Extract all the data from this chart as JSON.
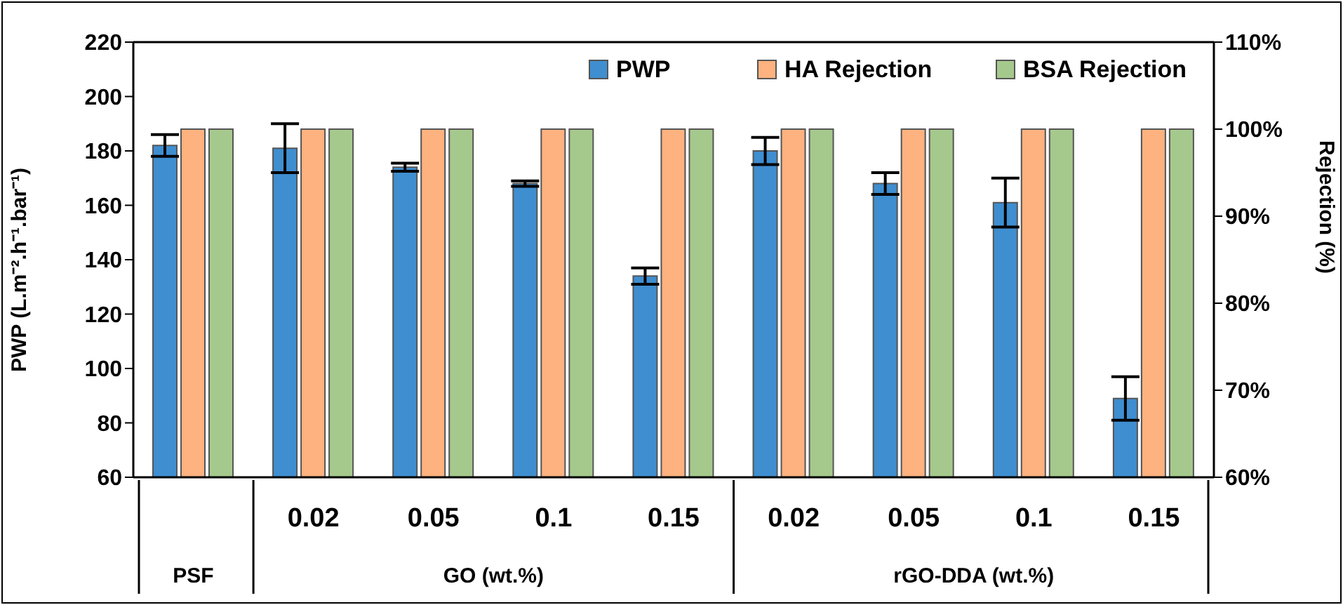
{
  "chart_data": {
    "type": "bar",
    "ylabel": "PWP (L.m⁻².h⁻¹.bar⁻¹)",
    "y2label": "Rejection (%)",
    "categories": [
      null,
      "0.02",
      "0.05",
      "0.1",
      "0.15",
      "0.02",
      "0.05",
      "0.1",
      "0.15"
    ],
    "annotations": [
      "PSF",
      "GO (wt.%)",
      "rGO-DDA (wt.%)"
    ],
    "series": [
      {
        "name": "PWP",
        "color": "#3f8ed0",
        "values": [
          182,
          181,
          174,
          168,
          134,
          180,
          168,
          161,
          89
        ],
        "errors": [
          4,
          9,
          1.5,
          1,
          3,
          5,
          4,
          9,
          8
        ]
      },
      {
        "name": "HA Rejection",
        "color": "#fdb27f",
        "axis": "y2",
        "values": [
          100,
          100,
          100,
          100,
          100,
          100,
          100,
          100,
          100
        ]
      },
      {
        "name": "BSA Rejection",
        "color": "#a5c98c",
        "axis": "y2",
        "values": [
          100,
          100,
          100,
          100,
          100,
          100,
          100,
          100,
          100
        ]
      }
    ],
    "ylim": [
      60,
      220
    ],
    "yticks": [
      60,
      80,
      100,
      120,
      140,
      160,
      180,
      200,
      220
    ],
    "y2lim": [
      60,
      110
    ],
    "y2ticks": [
      {
        "value": 60,
        "label": "60%"
      },
      {
        "value": 70,
        "label": "70%"
      },
      {
        "value": 80,
        "label": "80%"
      },
      {
        "value": 90,
        "label": "90%"
      },
      {
        "value": 100,
        "label": "100%"
      },
      {
        "value": 110,
        "label": "110%"
      }
    ],
    "grid": false,
    "legend": "top right"
  }
}
